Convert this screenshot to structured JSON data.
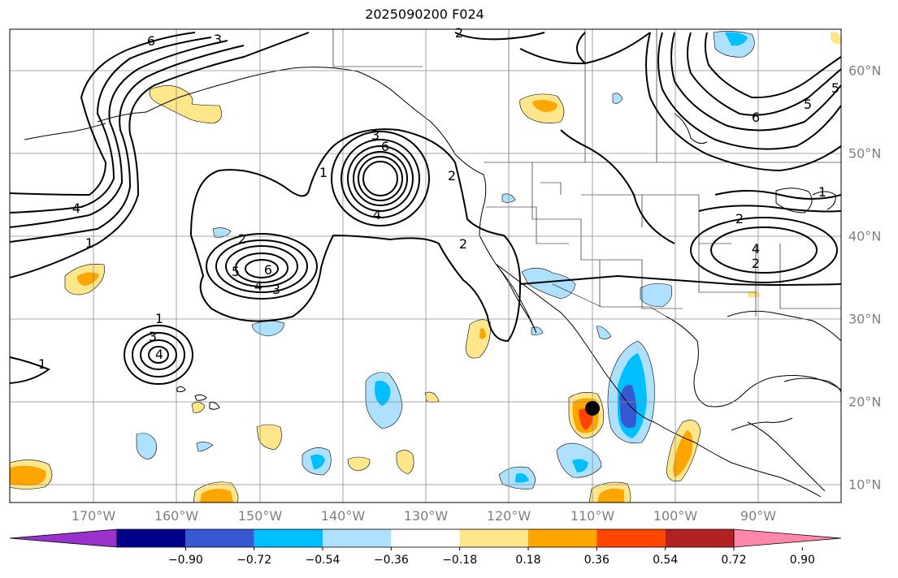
{
  "title": "2025090200 F024",
  "lon_labels": [
    "170°W",
    "160°W",
    "150°W",
    "140°W",
    "130°W",
    "120°W",
    "110°W",
    "100°W",
    "90°W"
  ],
  "lat_labels": [
    "60°N",
    "50°N",
    "40°N",
    "30°N",
    "20°N",
    "10°N"
  ],
  "colorbar": {
    "colors": [
      "#9932cc",
      "#00008b",
      "#3658d1",
      "#00bfff",
      "#aee0ff",
      "#ffffff",
      "#ffe68a",
      "#ffa500",
      "#ff4500",
      "#b22222",
      "#ff88aa"
    ],
    "tick_labels": [
      "−0.90",
      "−0.72",
      "−0.54",
      "−0.36",
      "−0.18",
      "0.18",
      "0.36",
      "0.54",
      "0.72",
      "0.90"
    ]
  },
  "contour_labels": [
    "6",
    "3",
    "2",
    "4",
    "1",
    "2",
    "1",
    "3",
    "6",
    "4",
    "2",
    "2",
    "5",
    "6",
    "4",
    "3",
    "1",
    "3",
    "4",
    "1",
    "5",
    "6",
    "2",
    "4",
    "2",
    "5",
    "1"
  ],
  "marker": "tropical-cyclone-position",
  "colors": {
    "contour": "#000000",
    "grid": "#8c8c8c",
    "coast": "#000000"
  }
}
